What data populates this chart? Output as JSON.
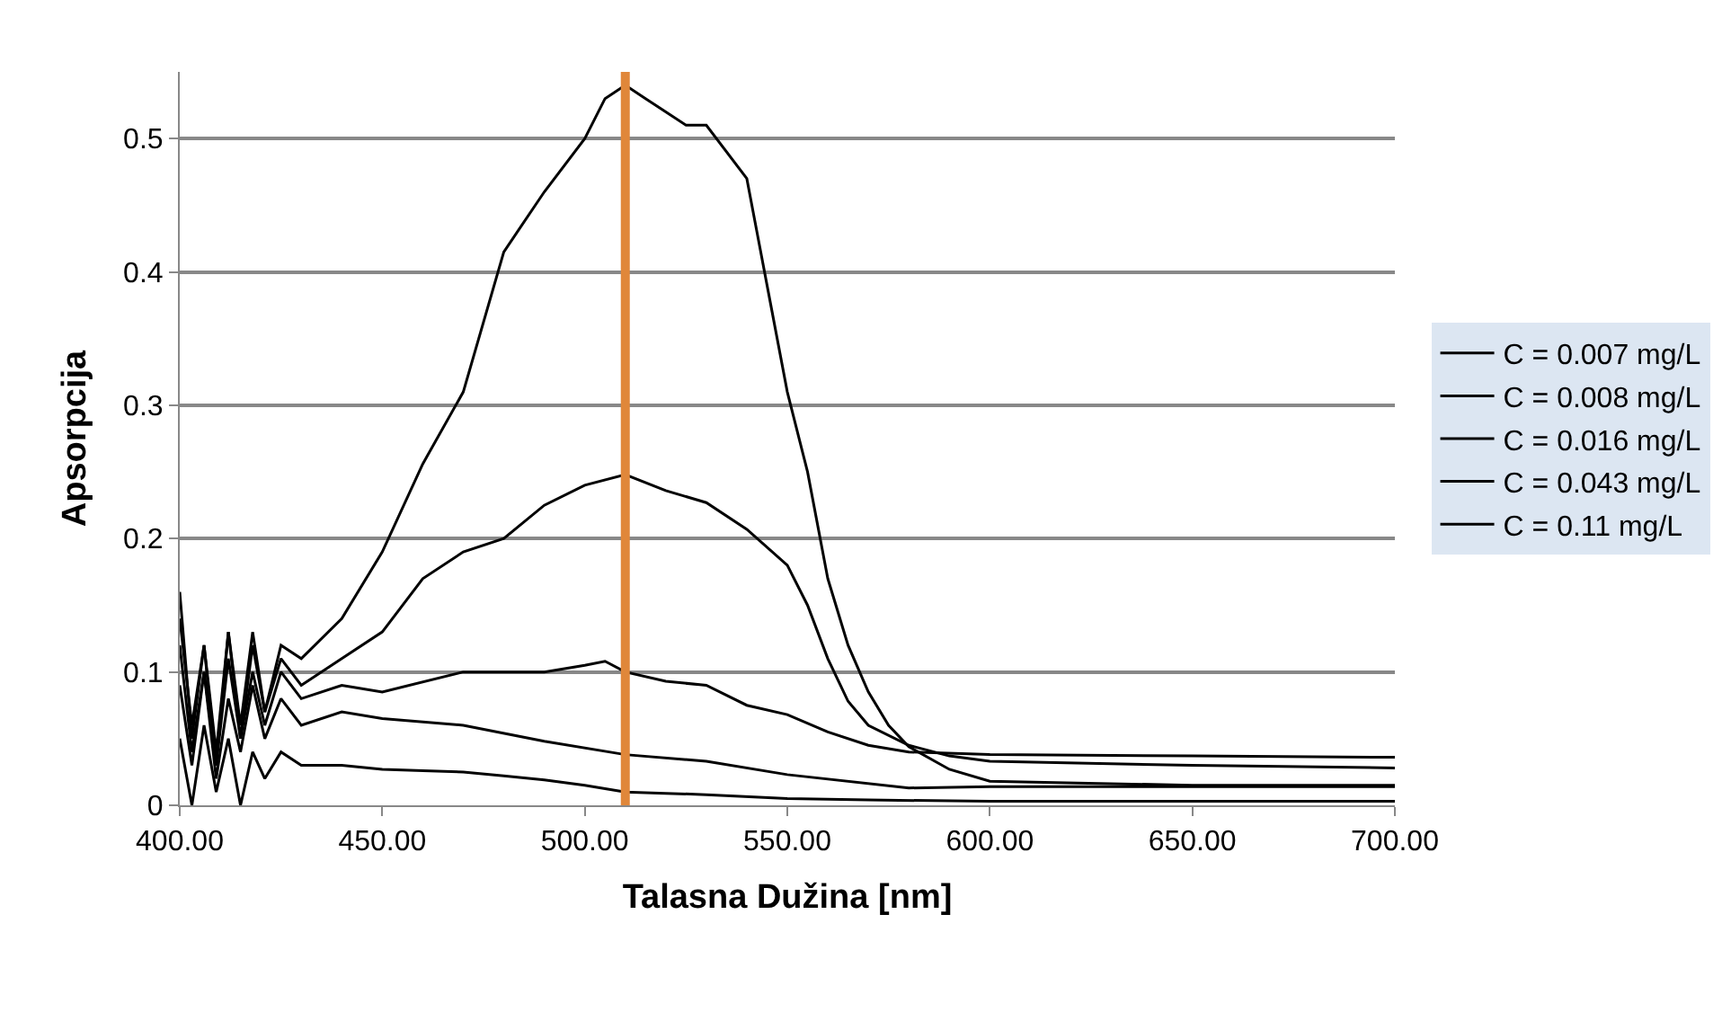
{
  "chart_data": {
    "type": "line",
    "xlabel": "Talasna Dužina [nm]",
    "ylabel": "Apsorpcija",
    "xlim": [
      400,
      700
    ],
    "xticks": [
      {
        "value": 400,
        "label": "400.00"
      },
      {
        "value": 450,
        "label": "450.00"
      },
      {
        "value": 500,
        "label": "500.00"
      },
      {
        "value": 550,
        "label": "550.00"
      },
      {
        "value": 600,
        "label": "600.00"
      },
      {
        "value": 650,
        "label": "650.00"
      },
      {
        "value": 700,
        "label": "700.00"
      }
    ],
    "ylim": [
      0,
      0.55
    ],
    "yticks": [
      0,
      0.1,
      0.2,
      0.3,
      0.4,
      0.5
    ],
    "grid": "y",
    "legend": "right",
    "marker": "none",
    "line_style": "solid",
    "ref_lines": [
      {
        "axis": "x",
        "value": 510,
        "label": null,
        "color": "#e0873a"
      }
    ],
    "series": [
      {
        "name": "C = 0.007 mg/L",
        "color": "#000000",
        "x": [
          400,
          403,
          406,
          409,
          412,
          415,
          418,
          421,
          425,
          430,
          440,
          450,
          460,
          470,
          480,
          490,
          500,
          510,
          520,
          530,
          550,
          570,
          600,
          650,
          700
        ],
        "values": [
          0.05,
          0.0,
          0.06,
          0.01,
          0.05,
          0.0,
          0.04,
          0.02,
          0.04,
          0.03,
          0.03,
          0.027,
          0.026,
          0.025,
          0.022,
          0.019,
          0.015,
          0.01,
          0.009,
          0.008,
          0.005,
          0.004,
          0.003,
          0.003,
          0.003
        ]
      },
      {
        "name": "C = 0.008 mg/L",
        "color": "#000000",
        "x": [
          400,
          403,
          406,
          409,
          412,
          415,
          418,
          421,
          425,
          430,
          440,
          450,
          470,
          490,
          510,
          530,
          550,
          580,
          600,
          650,
          700
        ],
        "values": [
          0.09,
          0.03,
          0.1,
          0.02,
          0.08,
          0.04,
          0.09,
          0.05,
          0.08,
          0.06,
          0.07,
          0.065,
          0.06,
          0.048,
          0.038,
          0.033,
          0.023,
          0.013,
          0.014,
          0.014,
          0.014
        ]
      },
      {
        "name": "C = 0.016 mg/L",
        "color": "#000000",
        "x": [
          400,
          403,
          406,
          409,
          412,
          415,
          418,
          421,
          425,
          430,
          440,
          450,
          470,
          480,
          490,
          500,
          505,
          510,
          520,
          530,
          540,
          550,
          560,
          570,
          580,
          600,
          650,
          700
        ],
        "values": [
          0.12,
          0.04,
          0.1,
          0.03,
          0.11,
          0.05,
          0.1,
          0.06,
          0.1,
          0.08,
          0.09,
          0.085,
          0.1,
          0.1,
          0.1,
          0.105,
          0.108,
          0.1,
          0.093,
          0.09,
          0.075,
          0.068,
          0.055,
          0.045,
          0.04,
          0.038,
          0.037,
          0.036
        ]
      },
      {
        "name": "C = 0.043 mg/L",
        "color": "#000000",
        "x": [
          400,
          403,
          406,
          409,
          412,
          415,
          418,
          421,
          425,
          430,
          440,
          450,
          460,
          470,
          480,
          490,
          500,
          510,
          520,
          530,
          540,
          550,
          555,
          560,
          565,
          570,
          580,
          590,
          600,
          650,
          700
        ],
        "values": [
          0.14,
          0.06,
          0.12,
          0.04,
          0.13,
          0.05,
          0.12,
          0.07,
          0.11,
          0.09,
          0.11,
          0.13,
          0.17,
          0.19,
          0.2,
          0.225,
          0.24,
          0.248,
          0.236,
          0.227,
          0.207,
          0.18,
          0.15,
          0.11,
          0.078,
          0.06,
          0.045,
          0.037,
          0.033,
          0.03,
          0.028
        ]
      },
      {
        "name": "C = 0.11 mg/L",
        "color": "#000000",
        "x": [
          400,
          403,
          406,
          409,
          412,
          415,
          418,
          421,
          425,
          430,
          440,
          450,
          460,
          470,
          480,
          490,
          500,
          505,
          510,
          515,
          520,
          525,
          530,
          540,
          545,
          550,
          555,
          560,
          565,
          570,
          575,
          580,
          590,
          600,
          650,
          700
        ],
        "values": [
          0.16,
          0.05,
          0.12,
          0.03,
          0.13,
          0.06,
          0.13,
          0.07,
          0.12,
          0.11,
          0.14,
          0.19,
          0.256,
          0.31,
          0.415,
          0.46,
          0.5,
          0.53,
          0.54,
          0.53,
          0.52,
          0.51,
          0.51,
          0.47,
          0.39,
          0.31,
          0.25,
          0.17,
          0.12,
          0.085,
          0.06,
          0.044,
          0.027,
          0.018,
          0.015,
          0.015
        ]
      }
    ]
  }
}
